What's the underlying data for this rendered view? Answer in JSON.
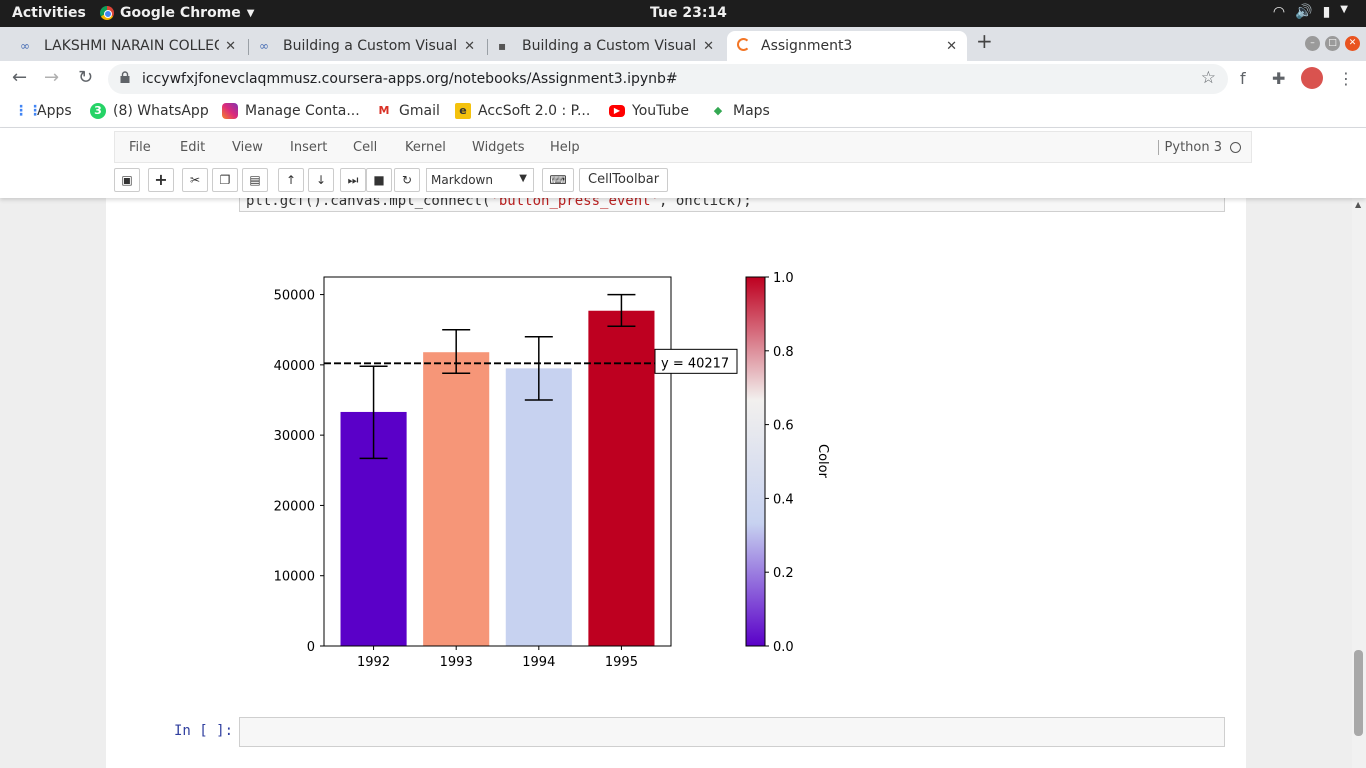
{
  "os": {
    "activities": "Activities",
    "app_name": "Google Chrome",
    "clock": "Tue 23:14"
  },
  "browser": {
    "tabs": [
      {
        "label": "LAKSHMI NARAIN COLLEG",
        "icon": "coursera-icon"
      },
      {
        "label": "Building a Custom Visuali",
        "icon": "coursera-icon"
      },
      {
        "label": "Building a Custom Visuali",
        "icon": "page-icon"
      },
      {
        "label": "Assignment3",
        "icon": "loading-spinner-icon"
      }
    ],
    "url": "iccywfxjfonevclaqmmusz.coursera-apps.org/notebooks/Assignment3.ipynb#",
    "bookmarks": [
      {
        "label": "Apps"
      },
      {
        "label": "(8) WhatsApp"
      },
      {
        "label": "Manage Conta..."
      },
      {
        "label": "Gmail"
      },
      {
        "label": "AccSoft 2.0 : P..."
      },
      {
        "label": "YouTube"
      },
      {
        "label": "Maps"
      }
    ]
  },
  "jupyter": {
    "menu": [
      "File",
      "Edit",
      "View",
      "Insert",
      "Cell",
      "Kernel",
      "Widgets",
      "Help"
    ],
    "kernel": "Python 3",
    "cell_type": "Markdown",
    "celltoolbar": "CellToolbar",
    "code_prefix": "plt.gcf().canvas.mpl_connect(",
    "code_string": "'button_press_event'",
    "code_suffix": ", onclick);",
    "empty_prompt": "In [ ]:"
  },
  "chart_data": {
    "type": "bar",
    "categories": [
      "1992",
      "1993",
      "1994",
      "1995"
    ],
    "values": [
      33300,
      41800,
      39500,
      47700
    ],
    "errors": [
      {
        "low": 26700,
        "high": 39800
      },
      {
        "low": 38800,
        "high": 45000
      },
      {
        "low": 35000,
        "high": 44000
      },
      {
        "low": 45500,
        "high": 50000
      }
    ],
    "bar_colors": [
      "#5a00c8",
      "#f69678",
      "#c7d2f0",
      "#be0020"
    ],
    "ylim": [
      0,
      52500
    ],
    "yticks": [
      "0",
      "10000",
      "20000",
      "30000",
      "40000",
      "50000"
    ],
    "hline": 40217,
    "hline_label": "y = 40217",
    "colorbar": {
      "label": "Color",
      "ticks": [
        "0.0",
        "0.2",
        "0.4",
        "0.6",
        "0.8",
        "1.0"
      ],
      "colors": [
        "#5a00c8",
        "#c7d2f0",
        "#f2f0ee",
        "#be0020"
      ]
    }
  }
}
